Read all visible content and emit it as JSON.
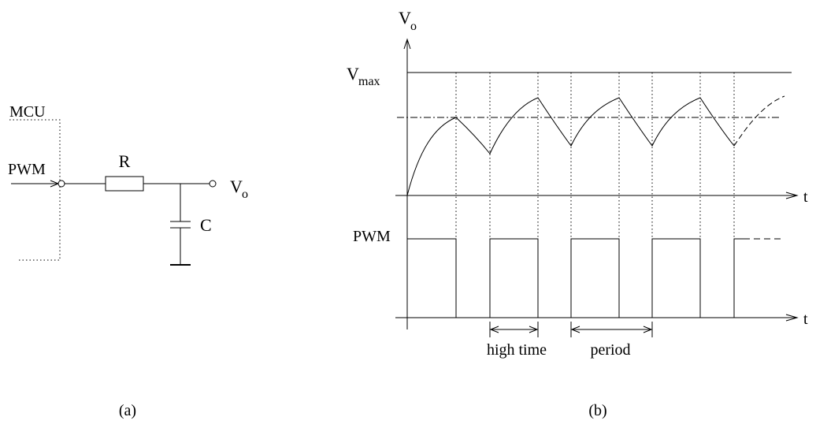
{
  "circuit": {
    "mcu_label": "MCU",
    "input_label": "PWM",
    "resistor_label": "R",
    "capacitor_label": "C",
    "output_label": "V",
    "output_subscript": "o",
    "caption": "(a)"
  },
  "timing": {
    "y_axis_label": "V",
    "y_axis_subscript": "o",
    "vmax_label": "V",
    "vmax_subscript": "max",
    "time_label_top": "t",
    "pwm_label": "PWM",
    "time_label_bottom": "t",
    "high_time_label": "high time",
    "period_label": "period",
    "caption": "(b)"
  }
}
